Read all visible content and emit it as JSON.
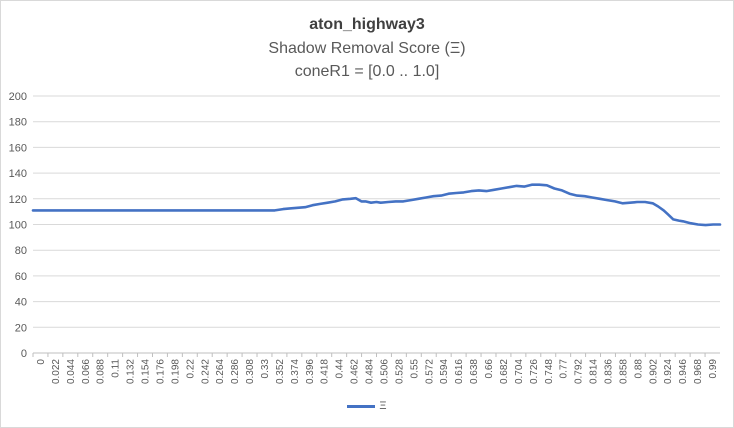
{
  "chart_data": {
    "type": "line",
    "title": "aton_highway3",
    "subtitle": "Shadow Removal Score (Ξ)",
    "subtitle2": "coneR1 = [0.0 .. 1.0]",
    "xlabel": "",
    "ylabel": "",
    "ylim": [
      0,
      200
    ],
    "yticks": [
      0,
      20,
      40,
      60,
      80,
      100,
      120,
      140,
      160,
      180,
      200
    ],
    "xlim": [
      0,
      1.0
    ],
    "xtick_labels": [
      "0",
      "0.022",
      "0.044",
      "0.066",
      "0.088",
      "0.11",
      "0.132",
      "0.154",
      "0.176",
      "0.198",
      "0.22",
      "0.242",
      "0.264",
      "0.286",
      "0.308",
      "0.33",
      "0.352",
      "0.374",
      "0.396",
      "0.418",
      "0.44",
      "0.462",
      "0.484",
      "0.506",
      "0.528",
      "0.55",
      "0.572",
      "0.594",
      "0.616",
      "0.638",
      "0.66",
      "0.682",
      "0.704",
      "0.726",
      "0.748",
      "0.77",
      "0.792",
      "0.814",
      "0.836",
      "0.858",
      "0.88",
      "0.902",
      "0.924",
      "0.946",
      "0.968",
      "0.99"
    ],
    "grid": true,
    "legend_position": "bottom",
    "series": [
      {
        "name": "Ξ",
        "color": "#4472c4",
        "x": [
          0,
          0.05,
          0.1,
          0.15,
          0.2,
          0.25,
          0.3,
          0.34,
          0.352,
          0.364,
          0.374,
          0.385,
          0.396,
          0.407,
          0.418,
          0.429,
          0.44,
          0.451,
          0.462,
          0.47,
          0.478,
          0.484,
          0.492,
          0.5,
          0.506,
          0.517,
          0.528,
          0.539,
          0.55,
          0.561,
          0.572,
          0.583,
          0.594,
          0.605,
          0.616,
          0.627,
          0.638,
          0.649,
          0.66,
          0.671,
          0.682,
          0.693,
          0.704,
          0.715,
          0.726,
          0.737,
          0.748,
          0.759,
          0.77,
          0.781,
          0.792,
          0.803,
          0.814,
          0.825,
          0.836,
          0.847,
          0.858,
          0.869,
          0.88,
          0.891,
          0.902,
          0.91,
          0.918,
          0.924,
          0.932,
          0.94,
          0.946,
          0.957,
          0.968,
          0.979,
          0.99,
          1.0
        ],
        "y": [
          111,
          111,
          111,
          111,
          111,
          111,
          111,
          111,
          111,
          112,
          112.5,
          113,
          113.5,
          115,
          116,
          117,
          118,
          119.5,
          120,
          120.5,
          118,
          118,
          117,
          117.5,
          117,
          117.5,
          118,
          118,
          119,
          120,
          121,
          122,
          122.5,
          124,
          124.5,
          125,
          126,
          126.5,
          126,
          127,
          128,
          129,
          130,
          129.5,
          131,
          131,
          130.5,
          128,
          126.5,
          124,
          122.5,
          122,
          121,
          120,
          119,
          118,
          116.5,
          117,
          117.5,
          117.5,
          116.5,
          114,
          111,
          108,
          104,
          103,
          102.5,
          101,
          100,
          99.5,
          100,
          100
        ]
      }
    ]
  }
}
